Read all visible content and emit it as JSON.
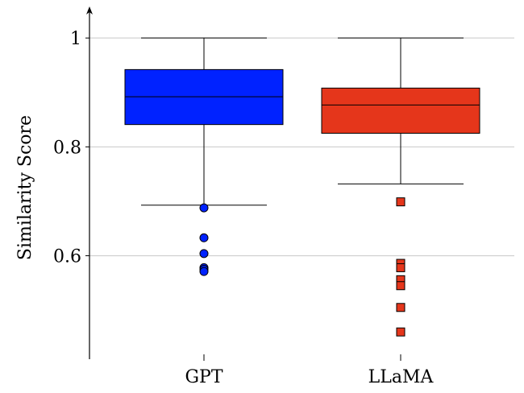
{
  "chart_data": {
    "type": "box",
    "title": "",
    "xlabel": "",
    "ylabel": "Similarity Score",
    "ylim": [
      0.41,
      1.055
    ],
    "yticks": [
      0.6,
      0.8,
      1
    ],
    "ytick_labels": [
      "0.6",
      "0.8",
      "1"
    ],
    "grid": true,
    "categories": [
      "GPT",
      "LLaMA"
    ],
    "series": [
      {
        "category": "GPT",
        "color": "#0022ff",
        "marker": "circle",
        "whisker_low": 0.693,
        "q1": 0.841,
        "median": 0.892,
        "q3": 0.942,
        "whisker_high": 1.0,
        "outliers": [
          0.688,
          0.633,
          0.604,
          0.578,
          0.575,
          0.571
        ]
      },
      {
        "category": "LLaMA",
        "color": "#e5361b",
        "marker": "square",
        "whisker_low": 0.732,
        "q1": 0.825,
        "median": 0.877,
        "q3": 0.908,
        "whisker_high": 1.0,
        "outliers": [
          0.699,
          0.586,
          0.578,
          0.556,
          0.545,
          0.505,
          0.46
        ]
      }
    ]
  }
}
